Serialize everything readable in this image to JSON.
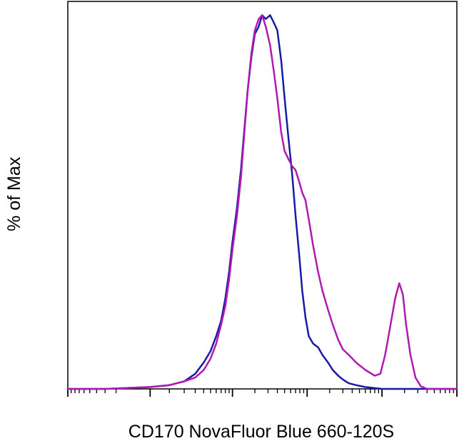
{
  "chart_data": {
    "type": "line",
    "title": "",
    "xlabel": "CD170 NovaFluor Blue 660-120S",
    "ylabel": "% of Max",
    "x_scale": "biexponential",
    "xlim": [
      -1000,
      1000000
    ],
    "ylim": [
      0,
      100
    ],
    "tick_labels_shown": false,
    "legend": "none",
    "grid": false,
    "x_major_ticks": [
      -1000,
      0,
      1000,
      10000,
      100000,
      1000000
    ],
    "series": [
      {
        "color": "#1a1aa6",
        "x": [
          -1000,
          -300,
          0,
          100,
          200,
          300,
          400,
          500,
          600,
          700,
          800,
          900,
          1000,
          1150,
          1300,
          1450,
          1600,
          1800,
          2000,
          2250,
          2500,
          2800,
          3200,
          3600,
          4000,
          4500,
          5000,
          5600,
          6300,
          7000,
          7800,
          8600,
          9500,
          10500,
          12000,
          14000,
          16000,
          19000,
          22000,
          26000,
          30000,
          36000,
          45000,
          60000,
          80000,
          100000,
          200000,
          500000,
          1000000
        ],
        "y": [
          0,
          0,
          0.5,
          1,
          2,
          4,
          7,
          10,
          14,
          18,
          24,
          31,
          39,
          48,
          58,
          69,
          79,
          88,
          94,
          96,
          99,
          98,
          99,
          97,
          95,
          87,
          77,
          67,
          57,
          46,
          36,
          26,
          19,
          14,
          12,
          11,
          9,
          7,
          5,
          3.5,
          2.5,
          1.5,
          1,
          0.5,
          0.2,
          0,
          0,
          0,
          0
        ]
      },
      {
        "color": "#b01ab0",
        "x": [
          -1000,
          -300,
          0,
          100,
          200,
          300,
          400,
          500,
          600,
          700,
          800,
          900,
          1000,
          1150,
          1300,
          1450,
          1600,
          1800,
          2000,
          2250,
          2500,
          2800,
          3200,
          3600,
          4000,
          4500,
          5000,
          5600,
          6300,
          7000,
          7800,
          8600,
          9500,
          10500,
          12000,
          14000,
          16000,
          19000,
          22000,
          26000,
          30000,
          36000,
          45000,
          60000,
          80000,
          95000,
          110000,
          130000,
          150000,
          170000,
          190000,
          210000,
          240000,
          280000,
          330000,
          400000,
          500000,
          1000000
        ],
        "y": [
          0,
          0,
          0.5,
          1,
          2,
          3,
          5,
          8,
          12,
          17,
          22,
          29,
          37,
          46,
          56,
          68,
          79,
          89,
          95,
          98,
          99,
          96,
          91,
          84,
          77,
          68,
          63,
          61,
          59,
          58,
          55,
          52,
          50,
          45,
          38,
          31,
          26,
          21,
          17,
          13,
          10.5,
          9,
          7,
          5,
          3.5,
          4,
          9,
          17,
          24,
          28,
          25,
          17,
          9,
          3,
          0.7,
          0,
          0,
          0
        ]
      }
    ]
  }
}
